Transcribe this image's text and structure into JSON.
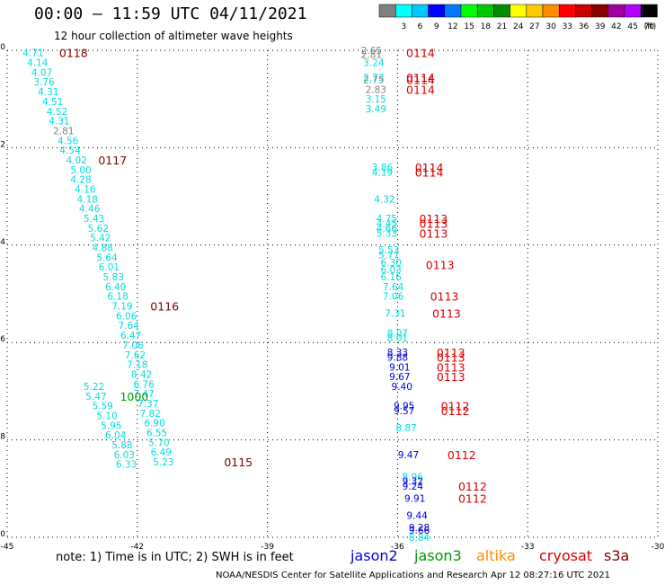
{
  "header": {
    "title": "00:00 – 11:59 UTC 04/11/2021",
    "subtitle": "12 hour collection of altimeter wave heights"
  },
  "colorbar": {
    "unit": "(ft)",
    "bins": [
      {
        "label": "",
        "color": "#808080"
      },
      {
        "label": "3",
        "color": "#00ffff"
      },
      {
        "label": "6",
        "color": "#00c8ff"
      },
      {
        "label": "9",
        "color": "#0000ff"
      },
      {
        "label": "12",
        "color": "#0078ff"
      },
      {
        "label": "15",
        "color": "#00ff00"
      },
      {
        "label": "18",
        "color": "#00c800"
      },
      {
        "label": "21",
        "color": "#008c00"
      },
      {
        "label": "24",
        "color": "#ffff00"
      },
      {
        "label": "27",
        "color": "#ffc800"
      },
      {
        "label": "30",
        "color": "#ff8c00"
      },
      {
        "label": "33",
        "color": "#ff0000"
      },
      {
        "label": "36",
        "color": "#c80000"
      },
      {
        "label": "39",
        "color": "#8c0000"
      },
      {
        "label": "42",
        "color": "#a000a0"
      },
      {
        "label": "45",
        "color": "#b400ff"
      },
      {
        "label": "70",
        "color": "#000000"
      }
    ]
  },
  "footer": {
    "note": "note: 1) Time is in UTC; 2) SWH is in feet",
    "credit": "NOAA/NESDIS Center for Satellite Applications and Research   Apr 12 08:27:16 UTC 2021",
    "missions": [
      {
        "name": "jason2",
        "color": "#0000dd"
      },
      {
        "name": "jason3",
        "color": "#009900"
      },
      {
        "name": "altika",
        "color": "#ff8c00"
      },
      {
        "name": "cryosat",
        "color": "#dd0000"
      },
      {
        "name": "s3a",
        "color": "#800000"
      }
    ]
  },
  "chart_data": {
    "type": "scatter",
    "title": "00:00 – 11:59 UTC 04/11/2021",
    "xlabel": "",
    "ylabel": "",
    "xlim": [
      -45,
      -30
    ],
    "ylim": [
      -40,
      -30
    ],
    "x_ticks": [
      "-45",
      "-42",
      "-39",
      "-36",
      "-33",
      "-30"
    ],
    "y_ticks": [
      "-30",
      "-32",
      "-34",
      "-36",
      "-38",
      "-40"
    ],
    "grid": true,
    "series": [
      {
        "name": "track-west",
        "color": "#00dddd",
        "points": [
          {
            "x": -44.4,
            "y": -30.05,
            "v": "4.71"
          },
          {
            "x": -44.3,
            "y": -30.25,
            "v": "4.14"
          },
          {
            "x": -44.2,
            "y": -30.45,
            "v": "4.07"
          },
          {
            "x": -44.15,
            "y": -30.65,
            "v": "3.76"
          },
          {
            "x": -44.05,
            "y": -30.85,
            "v": "4.31"
          },
          {
            "x": -43.95,
            "y": -31.05,
            "v": "4.51"
          },
          {
            "x": -43.85,
            "y": -31.25,
            "v": "4.52"
          },
          {
            "x": -43.8,
            "y": -31.45,
            "v": "4.31"
          },
          {
            "x": -43.7,
            "y": -31.65,
            "v": "2.81",
            "c": "#808080"
          },
          {
            "x": -43.6,
            "y": -31.85,
            "v": "4.56"
          },
          {
            "x": -43.55,
            "y": -32.05,
            "v": "4.54"
          },
          {
            "x": -43.4,
            "y": -32.25,
            "v": "4.02"
          },
          {
            "x": -43.3,
            "y": -32.45,
            "v": "5.00"
          },
          {
            "x": -43.3,
            "y": -32.65,
            "v": "4.28"
          },
          {
            "x": -43.2,
            "y": -32.85,
            "v": "4.16"
          },
          {
            "x": -43.15,
            "y": -33.05,
            "v": "4.18"
          },
          {
            "x": -43.1,
            "y": -33.25,
            "v": "4.46"
          },
          {
            "x": -43.0,
            "y": -33.45,
            "v": "5.43"
          },
          {
            "x": -42.9,
            "y": -33.65,
            "v": "5.62"
          },
          {
            "x": -42.85,
            "y": -33.85,
            "v": "5.42"
          },
          {
            "x": -42.8,
            "y": -34.05,
            "v": "4.88"
          },
          {
            "x": -42.7,
            "y": -34.25,
            "v": "5.64"
          },
          {
            "x": -42.65,
            "y": -34.45,
            "v": "6.01"
          },
          {
            "x": -42.55,
            "y": -34.65,
            "v": "5.83"
          },
          {
            "x": -42.5,
            "y": -34.85,
            "v": "6.40"
          },
          {
            "x": -42.45,
            "y": -35.05,
            "v": "6.18"
          },
          {
            "x": -42.35,
            "y": -35.25,
            "v": "7.19"
          },
          {
            "x": -42.25,
            "y": -35.45,
            "v": "6.06"
          },
          {
            "x": -42.2,
            "y": -35.65,
            "v": "7.64"
          },
          {
            "x": -42.15,
            "y": -35.85,
            "v": "6.47"
          },
          {
            "x": -42.1,
            "y": -36.05,
            "v": "7.06"
          },
          {
            "x": -42.05,
            "y": -36.25,
            "v": "7.62"
          },
          {
            "x": -42.0,
            "y": -36.45,
            "v": "7.18"
          },
          {
            "x": -41.9,
            "y": -36.65,
            "v": "8.42"
          },
          {
            "x": -41.85,
            "y": -36.85,
            "v": "6.76"
          },
          {
            "x": -41.85,
            "y": -37.05,
            "v": "7.47"
          },
          {
            "x": -41.75,
            "y": -37.25,
            "v": "7.37"
          },
          {
            "x": -41.7,
            "y": -37.45,
            "v": "7.82"
          },
          {
            "x": -41.6,
            "y": -37.65,
            "v": "6.90"
          },
          {
            "x": -41.55,
            "y": -37.85,
            "v": "6.55"
          },
          {
            "x": -41.5,
            "y": -38.05,
            "v": "5.70"
          },
          {
            "x": -41.45,
            "y": -38.25,
            "v": "6.49"
          },
          {
            "x": -41.4,
            "y": -38.45,
            "v": "5.23"
          },
          {
            "x": -43.0,
            "y": -36.9,
            "v": "5.22"
          },
          {
            "x": -42.95,
            "y": -37.1,
            "v": "5.47"
          },
          {
            "x": -42.8,
            "y": -37.3,
            "v": "5.59"
          },
          {
            "x": -42.7,
            "y": -37.5,
            "v": "5.10"
          },
          {
            "x": -42.6,
            "y": -37.7,
            "v": "5.95"
          },
          {
            "x": -42.5,
            "y": -37.9,
            "v": "6.04"
          },
          {
            "x": -42.35,
            "y": -38.1,
            "v": "5.88"
          },
          {
            "x": -42.3,
            "y": -38.3,
            "v": "6.03"
          },
          {
            "x": -42.25,
            "y": -38.5,
            "v": "6.33"
          }
        ]
      },
      {
        "name": "track-east",
        "color": "#00dddd",
        "points": [
          {
            "x": -36.6,
            "y": -30.0,
            "v": "2.65",
            "c": "#808080"
          },
          {
            "x": -36.6,
            "y": -30.08,
            "v": "2.81",
            "c": "#808080"
          },
          {
            "x": -36.55,
            "y": -30.25,
            "v": "3.24"
          },
          {
            "x": -36.55,
            "y": -30.55,
            "v": "2.73"
          },
          {
            "x": -36.55,
            "y": -30.6,
            "v": "2.75",
            "c": "#808080"
          },
          {
            "x": -36.5,
            "y": -30.8,
            "v": "2.83",
            "c": "#808080"
          },
          {
            "x": -36.5,
            "y": -31.0,
            "v": "3.15"
          },
          {
            "x": -36.5,
            "y": -31.2,
            "v": "3.49"
          },
          {
            "x": -36.35,
            "y": -32.4,
            "v": "3.86"
          },
          {
            "x": -36.35,
            "y": -32.5,
            "v": "4.19"
          },
          {
            "x": -36.3,
            "y": -33.05,
            "v": "4.32"
          },
          {
            "x": -36.25,
            "y": -33.45,
            "v": "4.75"
          },
          {
            "x": -36.25,
            "y": -33.55,
            "v": "4.45"
          },
          {
            "x": -36.25,
            "y": -33.65,
            "v": "4.66"
          },
          {
            "x": -36.25,
            "y": -33.75,
            "v": "5.33"
          },
          {
            "x": -36.2,
            "y": -34.1,
            "v": "5.53"
          },
          {
            "x": -36.2,
            "y": -34.2,
            "v": "5.77"
          },
          {
            "x": -36.15,
            "y": -34.35,
            "v": "6.30"
          },
          {
            "x": -36.15,
            "y": -34.5,
            "v": "6.03"
          },
          {
            "x": -36.15,
            "y": -34.65,
            "v": "6.16"
          },
          {
            "x": -36.1,
            "y": -34.85,
            "v": "7.64"
          },
          {
            "x": -36.1,
            "y": -35.05,
            "v": "7.06"
          },
          {
            "x": -36.05,
            "y": -35.4,
            "v": "7.31"
          },
          {
            "x": -36.0,
            "y": -35.8,
            "v": "8.07"
          },
          {
            "x": -36.0,
            "y": -35.9,
            "v": "8.01"
          },
          {
            "x": -36.0,
            "y": -36.2,
            "v": "8.33",
            "c": "#0000dd"
          },
          {
            "x": -36.0,
            "y": -36.3,
            "v": "9.88",
            "c": "#0000dd"
          },
          {
            "x": -35.95,
            "y": -36.5,
            "v": "9.01",
            "c": "#0000dd"
          },
          {
            "x": -35.95,
            "y": -36.7,
            "v": "9.67",
            "c": "#0000dd"
          },
          {
            "x": -35.9,
            "y": -36.9,
            "v": "9.40",
            "c": "#0000dd"
          },
          {
            "x": -35.85,
            "y": -37.3,
            "v": "9.95",
            "c": "#0000dd"
          },
          {
            "x": -35.85,
            "y": -37.4,
            "v": "9.57",
            "c": "#0000dd"
          },
          {
            "x": -35.8,
            "y": -37.75,
            "v": "8.87"
          },
          {
            "x": -35.75,
            "y": -38.3,
            "v": "9.47",
            "c": "#0000dd"
          },
          {
            "x": -35.65,
            "y": -38.75,
            "v": "8.96"
          },
          {
            "x": -35.65,
            "y": -38.85,
            "v": "9.32",
            "c": "#0000dd"
          },
          {
            "x": -35.65,
            "y": -38.95,
            "v": "9.24",
            "c": "#0000dd"
          },
          {
            "x": -35.6,
            "y": -39.2,
            "v": "9.91",
            "c": "#0000dd"
          },
          {
            "x": -35.55,
            "y": -39.55,
            "v": "9.44",
            "c": "#0000dd"
          },
          {
            "x": -35.5,
            "y": -39.8,
            "v": "9.28",
            "c": "#0000dd"
          },
          {
            "x": -35.5,
            "y": -39.85,
            "v": "9.66",
            "c": "#0000dd"
          },
          {
            "x": -35.5,
            "y": -40.0,
            "v": "8.84"
          }
        ]
      }
    ],
    "annotations": [
      {
        "x": -43.8,
        "y": -30.05,
        "text": "0118",
        "color": "#800000"
      },
      {
        "x": -42.9,
        "y": -32.25,
        "text": "0117",
        "color": "#800000"
      },
      {
        "x": -41.7,
        "y": -35.25,
        "text": "0116",
        "color": "#800000"
      },
      {
        "x": -40.0,
        "y": -38.45,
        "text": "0115",
        "color": "#800000"
      },
      {
        "x": -42.4,
        "y": -37.1,
        "text": "1000",
        "color": "#009900"
      },
      {
        "x": -35.8,
        "y": -30.05,
        "text": "0114",
        "color": "#dd0000"
      },
      {
        "x": -35.8,
        "y": -30.55,
        "text": "0114",
        "color": "#dd0000"
      },
      {
        "x": -35.8,
        "y": -30.6,
        "text": "0114",
        "color": "#dd0000"
      },
      {
        "x": -35.8,
        "y": -30.8,
        "text": "0114",
        "color": "#dd0000"
      },
      {
        "x": -35.6,
        "y": -32.4,
        "text": "0114",
        "color": "#dd0000"
      },
      {
        "x": -35.6,
        "y": -32.5,
        "text": "0114",
        "color": "#dd0000"
      },
      {
        "x": -35.5,
        "y": -33.45,
        "text": "0113",
        "color": "#dd0000"
      },
      {
        "x": -35.5,
        "y": -33.55,
        "text": "0113",
        "color": "#dd0000"
      },
      {
        "x": -35.5,
        "y": -33.75,
        "text": "0113",
        "color": "#dd0000"
      },
      {
        "x": -35.35,
        "y": -34.4,
        "text": "0113",
        "color": "#dd0000"
      },
      {
        "x": -35.25,
        "y": -35.05,
        "text": "0113",
        "color": "#dd0000"
      },
      {
        "x": -35.2,
        "y": -35.4,
        "text": "0113",
        "color": "#dd0000"
      },
      {
        "x": -35.1,
        "y": -36.2,
        "text": "0113",
        "color": "#dd0000"
      },
      {
        "x": -35.1,
        "y": -36.3,
        "text": "0113",
        "color": "#dd0000"
      },
      {
        "x": -35.1,
        "y": -36.5,
        "text": "0113",
        "color": "#dd0000"
      },
      {
        "x": -35.1,
        "y": -36.7,
        "text": "0113",
        "color": "#dd0000"
      },
      {
        "x": -35.0,
        "y": -37.3,
        "text": "0112",
        "color": "#dd0000"
      },
      {
        "x": -35.0,
        "y": -37.4,
        "text": "0112",
        "color": "#dd0000"
      },
      {
        "x": -34.85,
        "y": -38.3,
        "text": "0112",
        "color": "#dd0000"
      },
      {
        "x": -34.6,
        "y": -38.95,
        "text": "0112",
        "color": "#dd0000"
      },
      {
        "x": -34.6,
        "y": -39.2,
        "text": "0112",
        "color": "#dd0000"
      }
    ]
  }
}
